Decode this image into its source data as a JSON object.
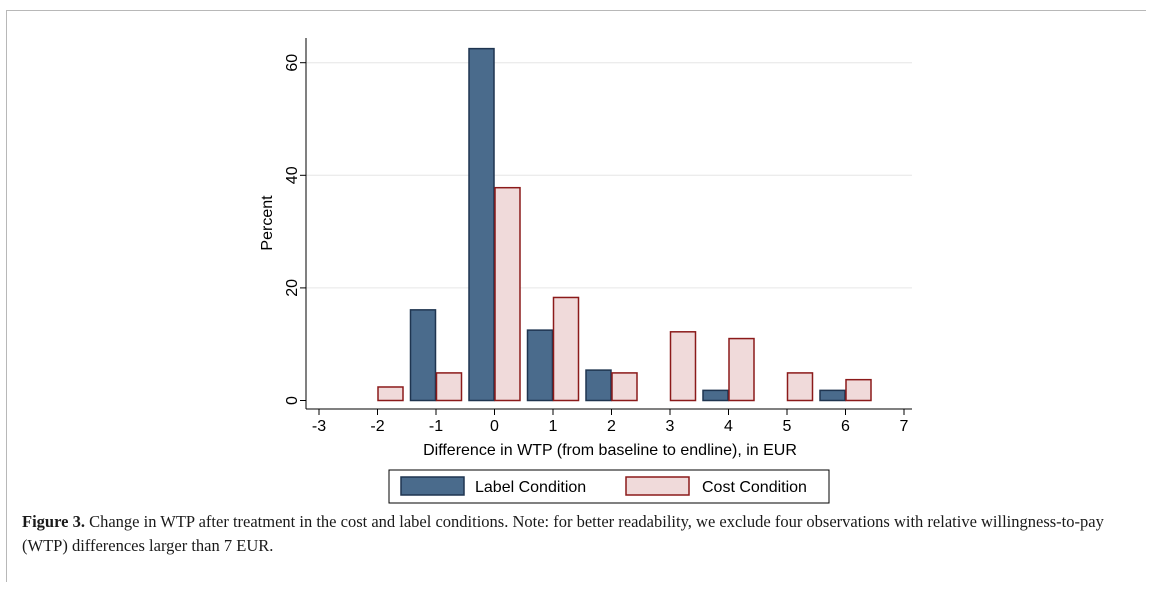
{
  "chart_data": {
    "type": "bar",
    "xlabel": "Difference in WTP (from baseline to endline), in EUR",
    "ylabel": "Percent",
    "x_ticks": [
      -3,
      -2,
      -1,
      0,
      1,
      2,
      3,
      4,
      5,
      6,
      7
    ],
    "y_ticks": [
      0,
      20,
      40,
      60
    ],
    "xlim": [
      -3,
      7
    ],
    "ylim": [
      0,
      65
    ],
    "grid": true,
    "legend_position": "bottom",
    "series": [
      {
        "name": "Label Condition",
        "color": "#4a6b8c",
        "edge_color": "#1f3550",
        "x": [
          -1,
          0,
          1,
          2,
          4,
          6
        ],
        "values": [
          16.1,
          62.5,
          12.5,
          5.4,
          1.8,
          1.8
        ]
      },
      {
        "name": "Cost Condition",
        "color": "#f0dada",
        "edge_color": "#8b1a1a",
        "x": [
          -2,
          -1,
          0,
          1,
          2,
          3,
          4,
          5,
          6
        ],
        "values": [
          2.4,
          4.9,
          37.8,
          18.3,
          4.9,
          12.2,
          11.0,
          4.9,
          3.7
        ]
      }
    ]
  },
  "caption": {
    "label": "Figure 3.",
    "text": " Change in WTP after treatment in the cost and label conditions. Note: for better readability, we exclude four observations with relative willingness-to-pay (WTP) differences larger than 7 EUR."
  }
}
